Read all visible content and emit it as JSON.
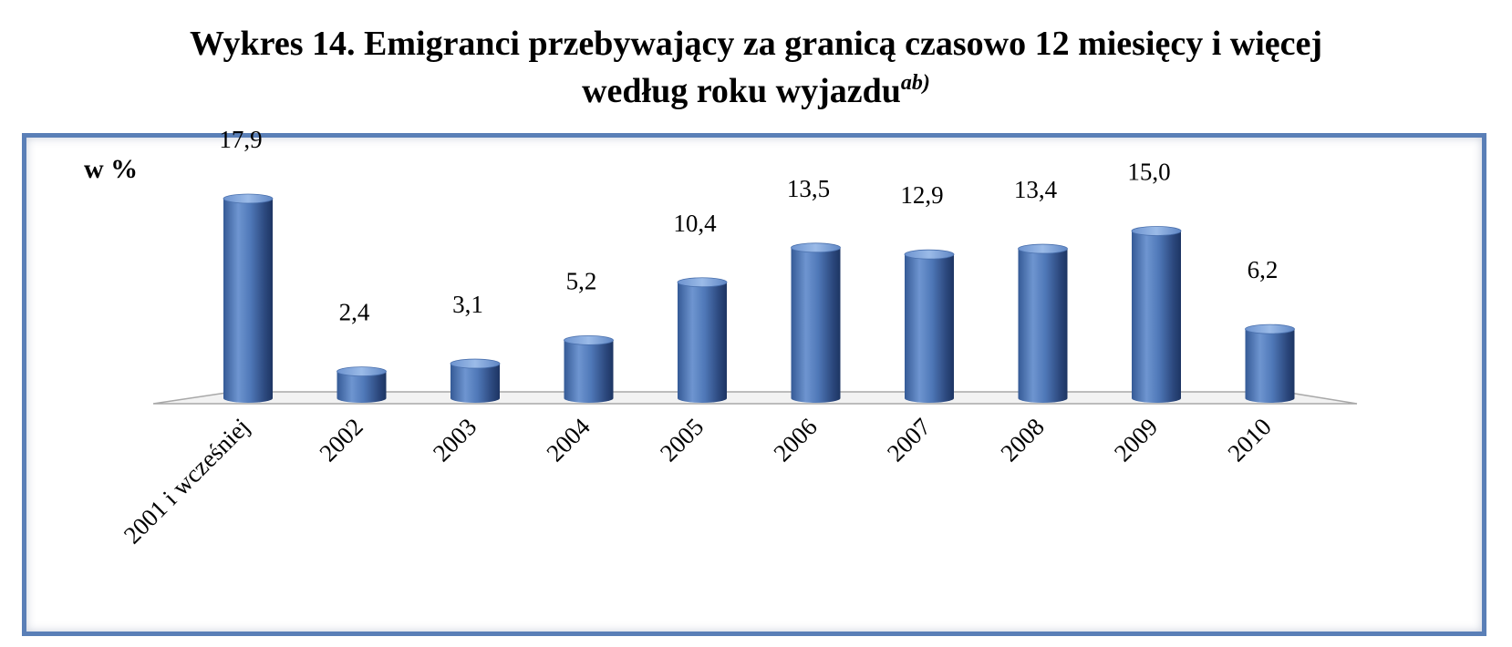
{
  "title": {
    "line1": "Wykres 14. Emigranci przebywający za granicą czasowo 12 miesięcy i więcej",
    "line2": "według roku wyjazdu",
    "footnote_mark": "ab)"
  },
  "chart_data": {
    "type": "bar",
    "ylabel": "w %",
    "categories": [
      "2001 i wcześniej",
      "2002",
      "2003",
      "2004",
      "2005",
      "2006",
      "2007",
      "2008",
      "2009",
      "2010"
    ],
    "values": [
      17.9,
      2.4,
      3.1,
      5.2,
      10.4,
      13.5,
      12.9,
      13.4,
      15.0,
      6.2
    ],
    "value_labels": [
      "17,9",
      "2,4",
      "3,1",
      "5,2",
      "10,4",
      "13,5",
      "12,9",
      "13,4",
      "15,0",
      "6,2"
    ],
    "ylim": [
      0,
      18
    ],
    "grid": false,
    "legend": "none",
    "style": "3d-cylinder",
    "colors": {
      "bar": "#4f78b8",
      "bar_dark": "#1d3563",
      "bar_light": "#8fb0e0",
      "frame": "#5a7fb7"
    }
  }
}
